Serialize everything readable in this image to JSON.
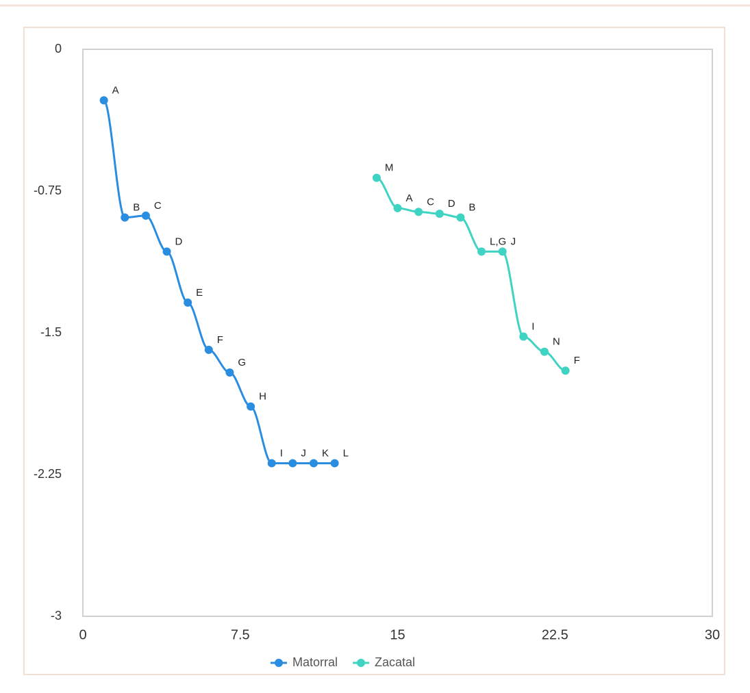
{
  "chart_data": {
    "type": "line",
    "series": [
      {
        "name": "Matorral",
        "color": "#2b8de0",
        "x": [
          1,
          2,
          3,
          4,
          5,
          6,
          7,
          8,
          9,
          10,
          11,
          12
        ],
        "values": [
          -0.27,
          -0.89,
          -0.88,
          -1.07,
          -1.34,
          -1.59,
          -1.71,
          -1.89,
          -2.19,
          -2.19,
          -2.19,
          -2.19
        ],
        "point_labels": [
          "A",
          "B",
          "C",
          "D",
          "E",
          "F",
          "G",
          "H",
          "I",
          "J",
          "K",
          "L"
        ]
      },
      {
        "name": "Zacatal",
        "color": "#3ed3c3",
        "x": [
          14,
          15,
          16,
          17,
          18,
          19,
          20,
          21,
          22,
          23
        ],
        "values": [
          -0.68,
          -0.84,
          -0.86,
          -0.87,
          -0.89,
          -1.07,
          -1.07,
          -1.52,
          -1.6,
          -1.7
        ],
        "point_labels": [
          "M",
          "A",
          "C",
          "D",
          "B",
          "L,G",
          "J",
          "I",
          "N",
          "F"
        ]
      }
    ],
    "xlim": [
      0,
      30
    ],
    "xticks": [
      0,
      7.5,
      15,
      22.5,
      30
    ],
    "ylim": [
      -3,
      0
    ],
    "yticks": [
      0,
      -0.75,
      -1.5,
      -2.25,
      -3
    ],
    "grid": false,
    "legend": "bottom"
  }
}
